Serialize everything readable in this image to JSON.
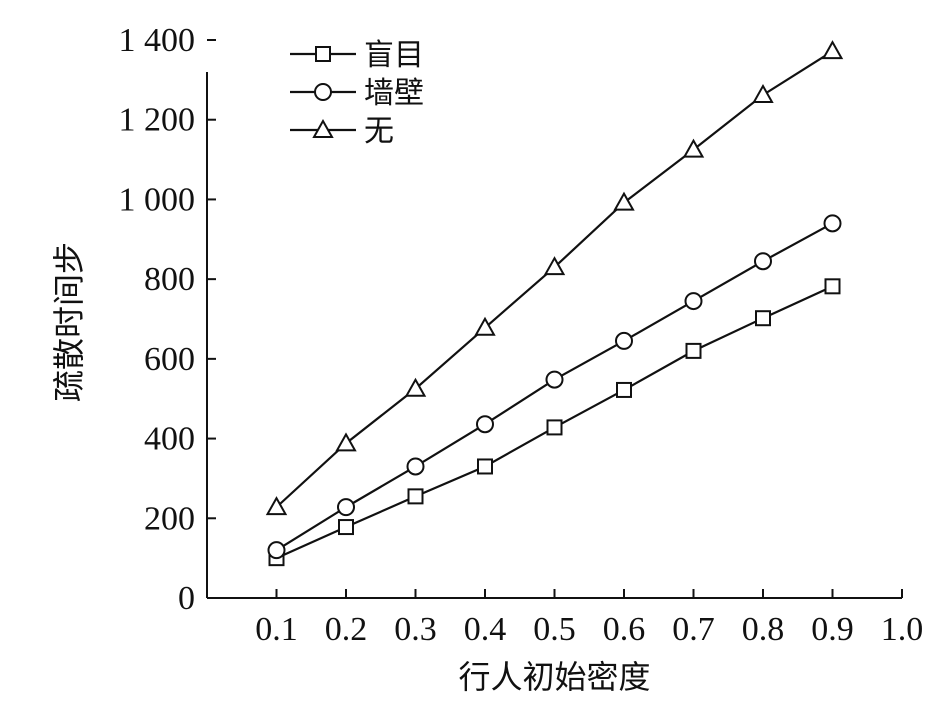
{
  "chart_data": {
    "type": "line",
    "xlabel": "行人初始密度",
    "ylabel": "疏散时间步",
    "xlim": [
      0,
      1.0
    ],
    "ylim": [
      0,
      1400
    ],
    "x_ticks": [
      "0.1",
      "0.2",
      "0.3",
      "0.4",
      "0.5",
      "0.6",
      "0.7",
      "0.8",
      "0.9",
      "1.0"
    ],
    "x_tick_values": [
      0.1,
      0.2,
      0.3,
      0.4,
      0.5,
      0.6,
      0.7,
      0.8,
      0.9,
      1.0
    ],
    "y_ticks": [
      "0",
      "200",
      "400",
      "600",
      "800",
      "1 000",
      "1 200",
      "1 400"
    ],
    "y_tick_values": [
      0,
      200,
      400,
      600,
      800,
      1000,
      1200,
      1400
    ],
    "legend_position": "top-left",
    "grid": false,
    "x": [
      0.1,
      0.2,
      0.3,
      0.4,
      0.5,
      0.6,
      0.7,
      0.8,
      0.9
    ],
    "series": [
      {
        "name": "盲目",
        "marker": "square",
        "values": [
          100,
          178,
          255,
          330,
          428,
          522,
          620,
          702,
          782
        ]
      },
      {
        "name": "墙壁",
        "marker": "circle",
        "values": [
          120,
          228,
          330,
          436,
          548,
          645,
          745,
          845,
          940
        ]
      },
      {
        "name": "无",
        "marker": "triangle",
        "values": [
          228,
          388,
          525,
          678,
          830,
          992,
          1125,
          1262,
          1372
        ]
      }
    ]
  }
}
